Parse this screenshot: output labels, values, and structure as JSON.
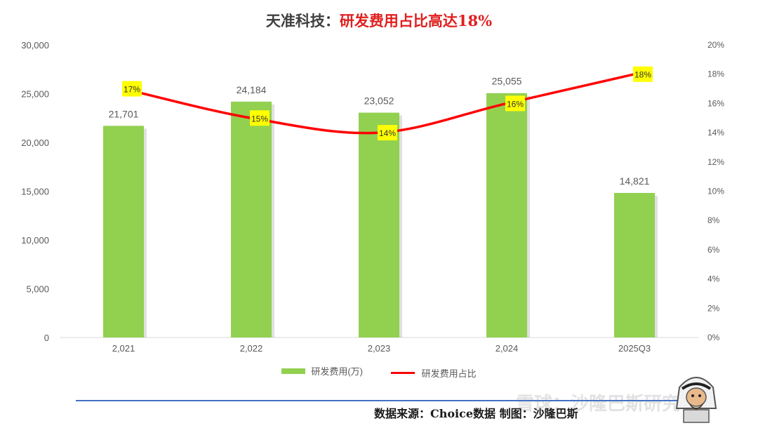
{
  "title": {
    "prefix": "天准科技：",
    "highlight": "研发费用占比高达18%"
  },
  "chart_data": {
    "type": "bar",
    "categories": [
      "2,021",
      "2,022",
      "2,023",
      "2,024",
      "2025Q3"
    ],
    "series": [
      {
        "name": "研发费用(万)",
        "type": "bar",
        "axis": "left",
        "values": [
          21701,
          24184,
          23052,
          25055,
          14821
        ],
        "labels": [
          "21,701",
          "24,184",
          "23,052",
          "25,055",
          "14,821"
        ],
        "color": "#92d050"
      },
      {
        "name": "研发费用占比",
        "type": "line",
        "axis": "right",
        "values": [
          17,
          15,
          14,
          16,
          18
        ],
        "labels": [
          "17%",
          "15%",
          "14%",
          "16%",
          "18%"
        ],
        "color": "#ff0000"
      }
    ],
    "y_left": {
      "ylim": [
        0,
        30000
      ],
      "ticks": [
        "0",
        "5,000",
        "10,000",
        "15,000",
        "20,000",
        "25,000",
        "30,000"
      ]
    },
    "y_right": {
      "ylim": [
        0,
        20
      ],
      "ticks": [
        "0%",
        "2%",
        "4%",
        "6%",
        "8%",
        "10%",
        "12%",
        "14%",
        "16%",
        "18%",
        "20%"
      ]
    },
    "grid": false,
    "legend_position": "bottom",
    "label_highlight_color": "#ffff00"
  },
  "source_text": "数据来源：Choice数据  制图：沙隆巴斯",
  "watermark_text": "雪球：沙隆巴斯研究"
}
